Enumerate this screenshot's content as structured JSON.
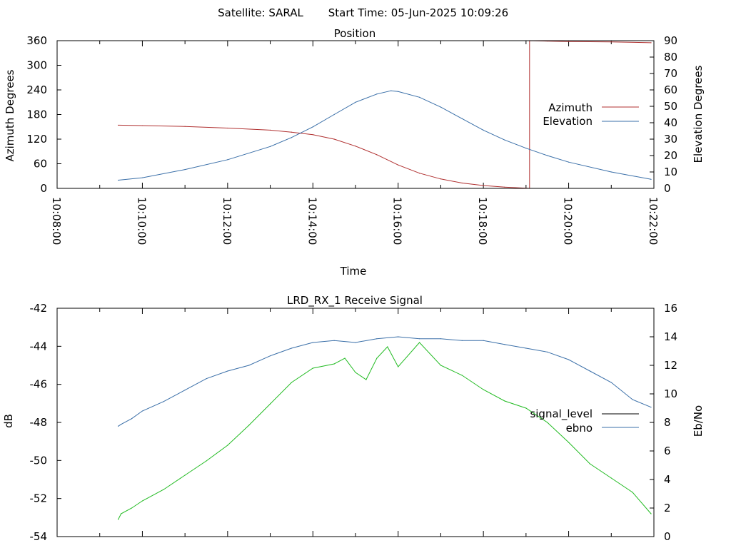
{
  "header": {
    "satellite_label": "Satellite: SARAL",
    "start_time_label": "Start Time: 05-Jun-2025 10:09:26"
  },
  "chart_data": [
    {
      "id": "position",
      "type": "line",
      "title": "Position",
      "xlabel": "Time",
      "ylabel": "Azimuth Degrees",
      "y2label": "Elevation Degrees",
      "xlim": [
        "10:08:00",
        "10:22:00"
      ],
      "ylim": [
        0,
        360
      ],
      "y2lim": [
        0,
        90
      ],
      "x_ticks": [
        "10:08:00",
        "10:10:00",
        "10:12:00",
        "10:14:00",
        "10:16:00",
        "10:18:00",
        "10:20:00",
        "10:22:00"
      ],
      "y_ticks": [
        "0",
        "60",
        "120",
        "180",
        "240",
        "300",
        "360"
      ],
      "y2_ticks": [
        "0",
        "10",
        "20",
        "30",
        "40",
        "50",
        "60",
        "70",
        "80",
        "90"
      ],
      "legend_position": "right",
      "series": [
        {
          "name": "Azimuth",
          "axis": "y",
          "color": "#b03030",
          "x": [
            "10:09:26",
            "10:10:00",
            "10:11:00",
            "10:12:00",
            "10:13:00",
            "10:13:30",
            "10:14:00",
            "10:14:30",
            "10:15:00",
            "10:15:30",
            "10:16:00",
            "10:16:30",
            "10:17:00",
            "10:17:30",
            "10:18:00",
            "10:18:30",
            "10:19:00",
            "10:19:05",
            "10:19:05",
            "10:19:30",
            "10:20:00",
            "10:21:00",
            "10:21:56"
          ],
          "values": [
            154,
            153,
            151,
            147,
            142,
            137,
            131,
            120,
            103,
            82,
            57,
            37,
            23,
            13,
            7,
            3,
            0.5,
            0,
            360,
            359,
            358,
            357,
            355
          ]
        },
        {
          "name": "Elevation",
          "axis": "y2",
          "color": "#3a6fa8",
          "x": [
            "10:09:26",
            "10:10:00",
            "10:11:00",
            "10:12:00",
            "10:13:00",
            "10:13:30",
            "10:14:00",
            "10:14:30",
            "10:15:00",
            "10:15:30",
            "10:15:50",
            "10:16:00",
            "10:16:30",
            "10:17:00",
            "10:17:30",
            "10:18:00",
            "10:18:30",
            "10:19:00",
            "10:19:30",
            "10:20:00",
            "10:21:00",
            "10:21:56"
          ],
          "values": [
            5,
            6.5,
            11.5,
            17.5,
            25.5,
            31,
            37.5,
            45,
            52.5,
            57.5,
            59.5,
            59,
            55.5,
            49.5,
            42.5,
            35.5,
            29.5,
            24.5,
            20,
            16,
            10,
            5.5
          ]
        }
      ]
    },
    {
      "id": "receive-signal",
      "type": "line",
      "title": "LRD_RX_1 Receive Signal",
      "ylabel": "dB",
      "y2label": "Eb/No",
      "xlim": [
        "10:08:00",
        "10:22:00"
      ],
      "ylim": [
        -54,
        -42
      ],
      "y2lim": [
        0,
        16
      ],
      "y_ticks": [
        "-54",
        "-52",
        "-50",
        "-48",
        "-46",
        "-44",
        "-42"
      ],
      "y2_ticks": [
        "0",
        "2",
        "4",
        "6",
        "8",
        "10",
        "12",
        "14",
        "16"
      ],
      "legend_position": "right",
      "series": [
        {
          "name": "signal_level",
          "axis": "y",
          "color": "#3a6fa8",
          "x": [
            "10:09:26",
            "10:09:30",
            "10:09:45",
            "10:10:00",
            "10:10:30",
            "10:11:00",
            "10:11:30",
            "10:12:00",
            "10:12:30",
            "10:13:00",
            "10:13:30",
            "10:14:00",
            "10:14:30",
            "10:15:00",
            "10:15:30",
            "10:16:00",
            "10:16:30",
            "10:17:00",
            "10:17:30",
            "10:18:00",
            "10:18:30",
            "10:19:00",
            "10:19:30",
            "10:20:00",
            "10:20:30",
            "10:21:00",
            "10:21:30",
            "10:21:56"
          ],
          "values": [
            -48.2,
            -48.1,
            -47.8,
            -47.4,
            -46.9,
            -46.3,
            -45.7,
            -45.3,
            -45.0,
            -44.5,
            -44.1,
            -43.8,
            -43.7,
            -43.8,
            -43.6,
            -43.5,
            -43.6,
            -43.6,
            -43.7,
            -43.7,
            -43.9,
            -44.1,
            -44.3,
            -44.7,
            -45.3,
            -45.9,
            -46.8,
            -47.2
          ]
        },
        {
          "name": "ebno",
          "axis": "y2",
          "color": "#22bb22",
          "x": [
            "10:09:26",
            "10:09:30",
            "10:09:45",
            "10:10:00",
            "10:10:30",
            "10:11:00",
            "10:11:30",
            "10:12:00",
            "10:12:30",
            "10:13:00",
            "10:13:30",
            "10:14:00",
            "10:14:30",
            "10:14:45",
            "10:15:00",
            "10:15:15",
            "10:15:30",
            "10:15:45",
            "10:16:00",
            "10:16:30",
            "10:17:00",
            "10:17:30",
            "10:18:00",
            "10:18:30",
            "10:19:00",
            "10:19:30",
            "10:20:00",
            "10:20:30",
            "10:21:00",
            "10:21:30",
            "10:21:56"
          ],
          "values": [
            1.2,
            1.6,
            2.0,
            2.5,
            3.3,
            4.3,
            5.3,
            6.4,
            7.8,
            9.3,
            10.8,
            11.8,
            12.1,
            12.5,
            11.5,
            11.0,
            12.5,
            13.3,
            11.9,
            13.6,
            12.0,
            11.3,
            10.3,
            9.5,
            9.0,
            8.0,
            6.6,
            5.1,
            4.1,
            3.1,
            1.6
          ]
        }
      ]
    }
  ]
}
